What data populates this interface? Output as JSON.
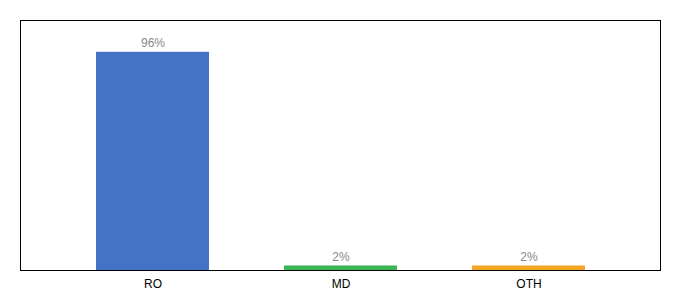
{
  "chart_data": {
    "type": "bar",
    "categories": [
      "RO",
      "MD",
      "OTH"
    ],
    "values": [
      96,
      2,
      2
    ],
    "value_labels": [
      "96%",
      "2%",
      "2%"
    ],
    "colors": [
      "#4472c4",
      "#3cb554",
      "#f5a623"
    ],
    "ylim": [
      0,
      110
    ],
    "data_labels": true,
    "tick_labels": "x"
  }
}
